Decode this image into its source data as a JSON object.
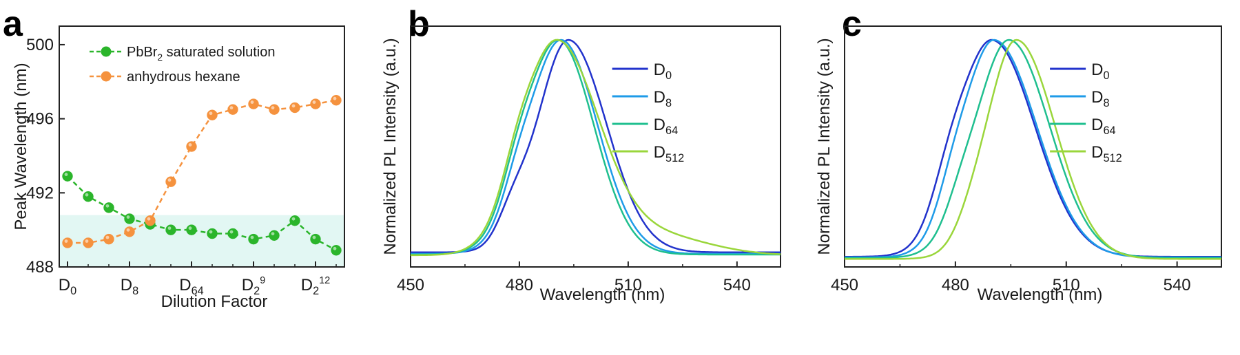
{
  "panels": {
    "a": "a",
    "b": "b",
    "c": "c"
  },
  "chart_data": [
    {
      "type": "line",
      "panel": "a",
      "xlabel": "Dilution Factor",
      "ylabel": "Peak Wavelength (nm)",
      "ylim": [
        488,
        501
      ],
      "yticks": [
        488,
        492,
        496,
        500
      ],
      "xtick_labels": [
        {
          "pos": 0,
          "base": "D",
          "sub": "0"
        },
        {
          "pos": 3,
          "base": "D",
          "sub": "8"
        },
        {
          "pos": 6,
          "base": "D",
          "sub": "64"
        },
        {
          "pos": 9,
          "base": "D",
          "sub": "2",
          "sup": "9"
        },
        {
          "pos": 12,
          "base": "D",
          "sub": "2",
          "sup": "12"
        }
      ],
      "x": [
        0,
        1,
        2,
        3,
        4,
        5,
        6,
        7,
        8,
        9,
        10,
        11,
        12,
        13
      ],
      "shaded_band": [
        488,
        490.8
      ],
      "series": [
        {
          "name": "PbBr",
          "name_sub": "2",
          "name_rest": " saturated solution",
          "color": "#2bb52b",
          "values": [
            492.9,
            491.8,
            491.2,
            490.6,
            490.3,
            490.0,
            490.0,
            489.8,
            489.8,
            489.5,
            489.7,
            490.5,
            489.5,
            488.9
          ]
        },
        {
          "name": "anhydrous hexane",
          "color": "#f5923e",
          "values": [
            489.3,
            489.3,
            489.5,
            489.9,
            490.5,
            492.6,
            494.5,
            496.2,
            496.5,
            496.8,
            496.5,
            496.6,
            496.8,
            497.0
          ]
        }
      ],
      "legend": "top-left"
    },
    {
      "type": "line",
      "panel": "b",
      "xlabel": "Wavelength (nm)",
      "ylabel": "Normalized PL Intensity (a.u.)",
      "xlim": [
        450,
        552
      ],
      "xticks": [
        450,
        480,
        510,
        540
      ],
      "ylim": [
        0,
        1
      ],
      "legend": "top-right",
      "series": [
        {
          "name": "D",
          "name_sub": "0",
          "color": "#2233cc",
          "peak": 493.5,
          "sigL": 8.5,
          "sigR": 10.5,
          "shoulder": 478,
          "shAmp": 0.12,
          "shSig": 4.0,
          "base": 0.035
        },
        {
          "name": "D",
          "name_sub": "8",
          "color": "#1e9be8",
          "peak": 491.5,
          "sigL": 9.0,
          "sigR": 10.0,
          "shoulder": 479,
          "shAmp": 0.1,
          "shSig": 4.0,
          "base": 0.028
        },
        {
          "name": "D",
          "name_sub": "64",
          "color": "#1fbf8f",
          "peak": 490.7,
          "sigL": 9.3,
          "sigR": 9.8,
          "shoulder": 479,
          "shAmp": 0.1,
          "shSig": 4.0,
          "base": 0.025
        },
        {
          "name": "D",
          "name_sub": "512",
          "color": "#9ad63b",
          "peak": 490.2,
          "sigL": 9.5,
          "sigR": 11.5,
          "shoulder": 479,
          "shAmp": 0.1,
          "shSig": 4.0,
          "base": 0.022,
          "tail": 0.09
        }
      ]
    },
    {
      "type": "line",
      "panel": "c",
      "xlabel": "Wavelength (nm)",
      "ylabel": "Normalized PL Intensity (a.u.)",
      "xlim": [
        450,
        552
      ],
      "xticks": [
        450,
        480,
        510,
        540
      ],
      "ylim": [
        0,
        1
      ],
      "legend": "top-right",
      "series": [
        {
          "name": "D",
          "name_sub": "0",
          "color": "#2233cc",
          "peak": 490.0,
          "sigL": 9.0,
          "sigR": 11.5,
          "shoulder": 478,
          "shAmp": 0.14,
          "shSig": 4.5,
          "base": 0.015
        },
        {
          "name": "D",
          "name_sub": "8",
          "color": "#1e9be8",
          "peak": 490.5,
          "sigL": 8.5,
          "sigR": 11.5,
          "shoulder": 479,
          "shAmp": 0.1,
          "shSig": 4.0,
          "base": 0.012
        },
        {
          "name": "D",
          "name_sub": "64",
          "color": "#1fbf8f",
          "peak": 494.5,
          "sigL": 9.0,
          "sigR": 11.0,
          "shoulder": 481,
          "shAmp": 0.08,
          "shSig": 4.0,
          "base": 0.01
        },
        {
          "name": "D",
          "name_sub": "512",
          "color": "#9ad63b",
          "peak": 496.5,
          "sigL": 8.0,
          "sigR": 10.5,
          "shoulder": 484,
          "shAmp": 0.05,
          "shSig": 4.0,
          "base": 0.005
        }
      ]
    }
  ]
}
